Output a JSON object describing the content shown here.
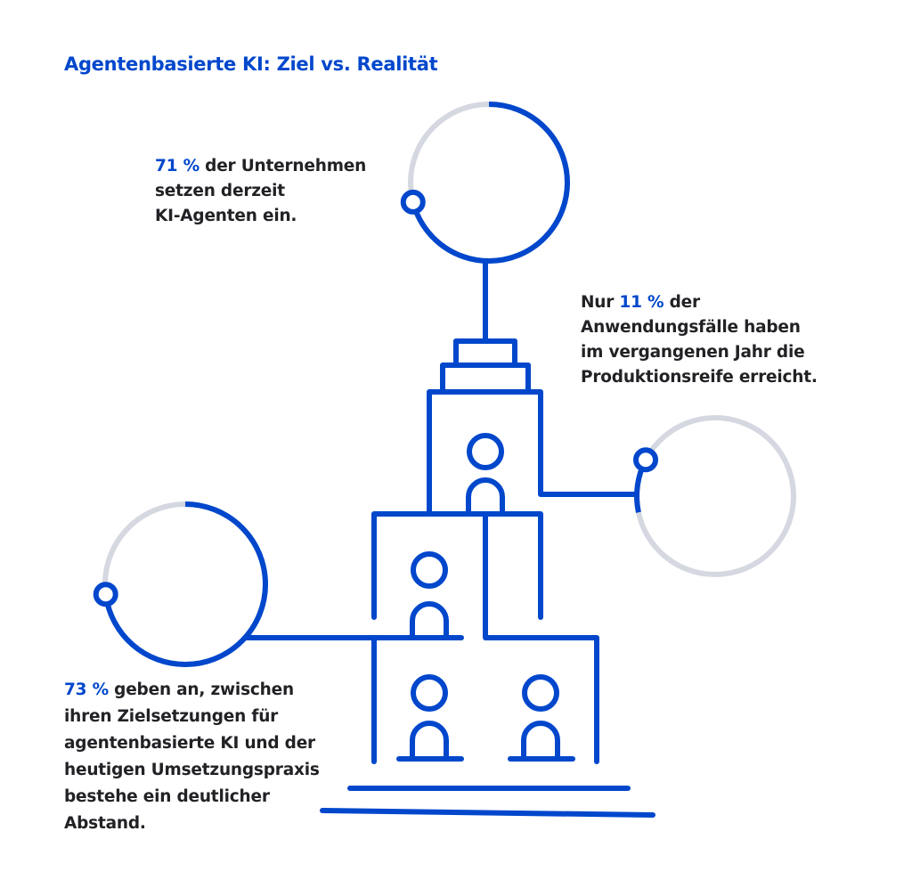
{
  "title": "Agentenbasierte KI: Ziel vs. Realität",
  "colors": {
    "accent": "#0047CC",
    "track": "#D5D8E0",
    "text": "#222226"
  },
  "stats": [
    {
      "prefix": "",
      "highlight": "71 %",
      "rest": " der Unternehmen",
      "lines": [
        "setzen derzeit",
        "KI-Agenten ein."
      ],
      "percent": 71
    },
    {
      "prefix": "Nur ",
      "highlight": "11 %",
      "rest": " der",
      "lines": [
        "Anwendungsfälle haben",
        "im vergangenen Jahr die",
        "Produktionsreife erreicht."
      ],
      "percent": 11
    },
    {
      "prefix": "",
      "highlight": "73 %",
      "rest": " geben an, zwischen",
      "lines": [
        "ihren Zielsetzungen für",
        "agentenbasierte KI und der",
        "heutigen Umsetzungspraxis",
        "bestehe ein deutlicher",
        "Abstand."
      ],
      "percent": 73
    }
  ],
  "illustration": {
    "subject": "building-with-people-icons"
  }
}
